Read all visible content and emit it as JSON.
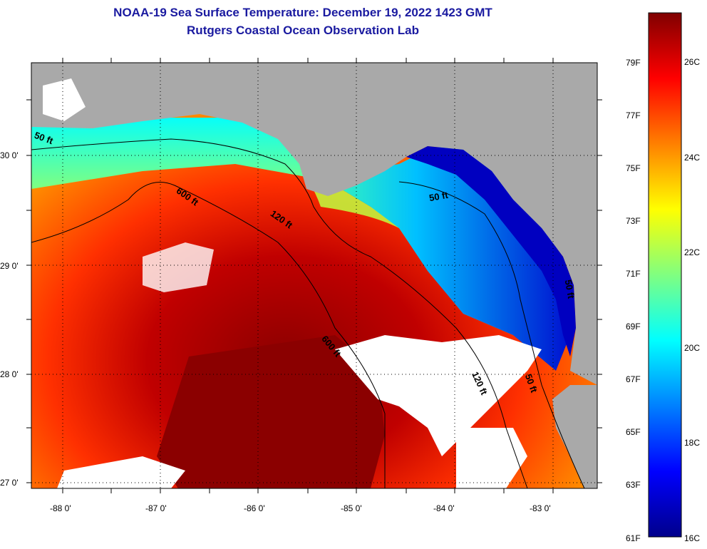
{
  "title_line1": "NOAA-19 Sea Surface Temperature:  December 19, 2022 1423 GMT",
  "title_line2": "Rutgers Coastal Ocean Observation Lab",
  "map": {
    "lon_labels": [
      "-88 0'",
      "-87 0'",
      "-86 0'",
      "-85 0'",
      "-84 0'",
      "-83 0'"
    ],
    "lat_labels": [
      "30 0'",
      "29 0'",
      "28 0'",
      "27 0'"
    ],
    "contour_labels": [
      "50 ft",
      "600 ft",
      "120 ft",
      "50 ft",
      "600 ft",
      "120 ft",
      "50 ft",
      "50 ft"
    ]
  },
  "colorbar": {
    "f_labels": [
      "79F",
      "77F",
      "75F",
      "73F",
      "71F",
      "69F",
      "67F",
      "65F",
      "63F",
      "61F"
    ],
    "c_labels": [
      "26C",
      "24C",
      "22C",
      "20C",
      "18C",
      "16C"
    ],
    "colors": [
      "#00008b",
      "#0000ff",
      "#0080ff",
      "#00ffff",
      "#80ff80",
      "#ffff00",
      "#ff8000",
      "#ff0000",
      "#800000"
    ]
  },
  "colors": {
    "land": "#a9a9a9",
    "cloud": "#ffffff",
    "title": "#1a1aa0"
  }
}
